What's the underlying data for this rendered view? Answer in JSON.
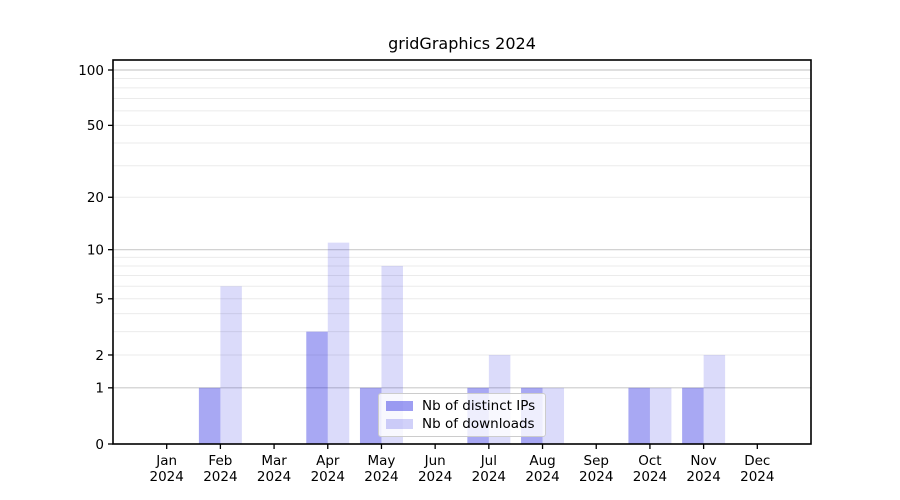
{
  "chart_data": {
    "type": "bar",
    "title": "gridGraphics 2024",
    "categories": [
      "Jan",
      "Feb",
      "Mar",
      "Apr",
      "May",
      "Jun",
      "Jul",
      "Aug",
      "Sep",
      "Oct",
      "Nov",
      "Dec"
    ],
    "year_label": "2024",
    "series": [
      {
        "name": "Nb of distinct IPs",
        "values": [
          0,
          1,
          0,
          3,
          1,
          0,
          1,
          1,
          0,
          1,
          1,
          0
        ],
        "color": "#0000dc",
        "fill_alpha": 0.34
      },
      {
        "name": "Nb of downloads",
        "values": [
          0,
          6,
          0,
          11,
          8,
          0,
          2,
          1,
          0,
          1,
          2,
          0
        ],
        "color": "#0000dc",
        "fill_alpha": 0.14
      }
    ],
    "yscale": "log1p",
    "yticks": [
      0,
      1,
      2,
      5,
      10,
      20,
      50,
      100
    ],
    "ylim": [
      0,
      113
    ],
    "grid": {
      "major": [
        1,
        10,
        100
      ],
      "minor": [
        2,
        3,
        4,
        5,
        6,
        7,
        8,
        9,
        20,
        30,
        40,
        50,
        60,
        70,
        80,
        90
      ],
      "major_color": "#cccccc",
      "minor_color": "#ebebeb"
    },
    "legend_position": "lower-center",
    "xlabel": "",
    "ylabel": ""
  }
}
